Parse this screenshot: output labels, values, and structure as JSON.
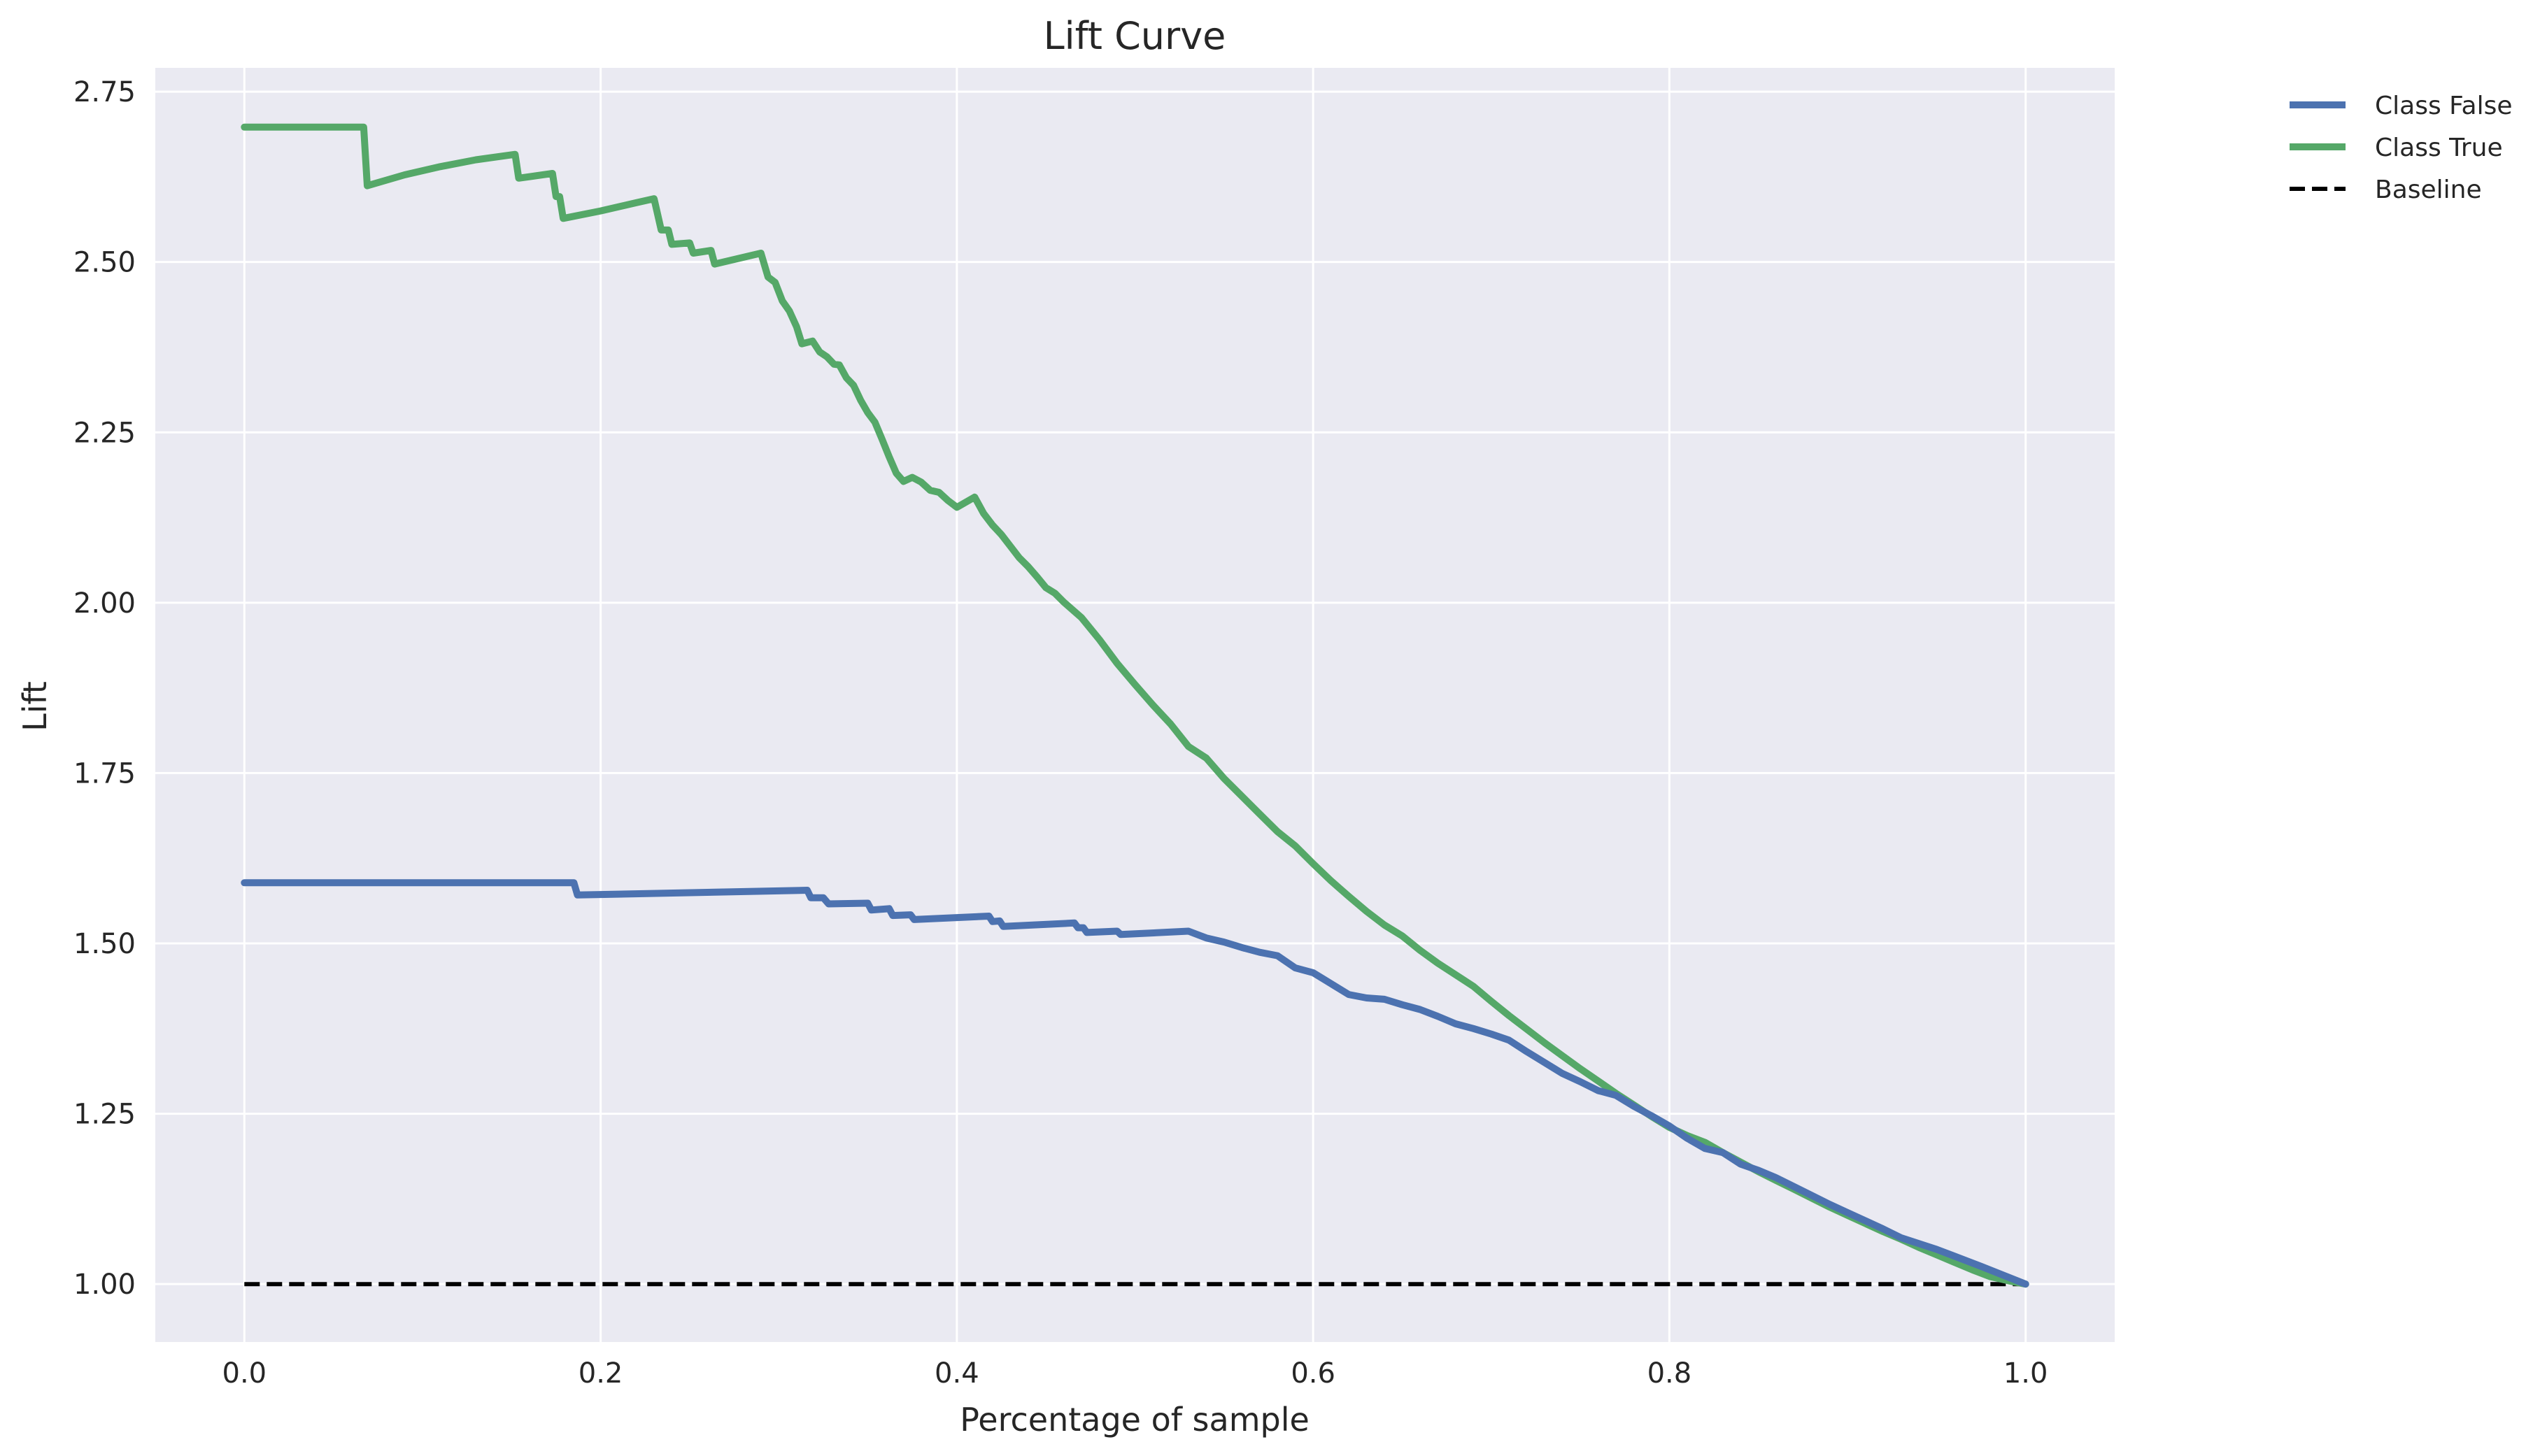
{
  "chart_data": {
    "type": "line",
    "title": "Lift Curve",
    "xlabel": "Percentage of sample",
    "ylabel": "Lift",
    "xlim": [
      -0.05,
      1.05
    ],
    "ylim": [
      0.915,
      2.785
    ],
    "grid": true,
    "legend_position": "outside top-right",
    "x_ticks": [
      {
        "value": 0.0,
        "label": "0.0"
      },
      {
        "value": 0.2,
        "label": "0.2"
      },
      {
        "value": 0.4,
        "label": "0.4"
      },
      {
        "value": 0.6,
        "label": "0.6"
      },
      {
        "value": 0.8,
        "label": "0.8"
      },
      {
        "value": 1.0,
        "label": "1.0"
      }
    ],
    "y_ticks": [
      {
        "value": 1.0,
        "label": "1.00"
      },
      {
        "value": 1.25,
        "label": "1.25"
      },
      {
        "value": 1.5,
        "label": "1.50"
      },
      {
        "value": 1.75,
        "label": "1.75"
      },
      {
        "value": 2.0,
        "label": "2.00"
      },
      {
        "value": 2.25,
        "label": "2.25"
      },
      {
        "value": 2.5,
        "label": "2.50"
      },
      {
        "value": 2.75,
        "label": "2.75"
      }
    ],
    "series": [
      {
        "name": "Class False",
        "color": "#4c72b0",
        "style": "solid",
        "points": [
          [
            0.0,
            1.589
          ],
          [
            0.185,
            1.589
          ],
          [
            0.187,
            1.571
          ],
          [
            0.316,
            1.578
          ],
          [
            0.318,
            1.567
          ],
          [
            0.325,
            1.567
          ],
          [
            0.328,
            1.558
          ],
          [
            0.35,
            1.559
          ],
          [
            0.352,
            1.549
          ],
          [
            0.362,
            1.551
          ],
          [
            0.364,
            1.541
          ],
          [
            0.374,
            1.542
          ],
          [
            0.376,
            1.535
          ],
          [
            0.418,
            1.54
          ],
          [
            0.42,
            1.532
          ],
          [
            0.424,
            1.533
          ],
          [
            0.426,
            1.525
          ],
          [
            0.466,
            1.53
          ],
          [
            0.468,
            1.523
          ],
          [
            0.471,
            1.523
          ],
          [
            0.473,
            1.516
          ],
          [
            0.49,
            1.518
          ],
          [
            0.492,
            1.513
          ],
          [
            0.53,
            1.518
          ],
          [
            0.54,
            1.508
          ],
          [
            0.55,
            1.502
          ],
          [
            0.56,
            1.494
          ],
          [
            0.57,
            1.487
          ],
          [
            0.58,
            1.482
          ],
          [
            0.59,
            1.464
          ],
          [
            0.6,
            1.457
          ],
          [
            0.61,
            1.441
          ],
          [
            0.62,
            1.425
          ],
          [
            0.63,
            1.42
          ],
          [
            0.64,
            1.418
          ],
          [
            0.65,
            1.41
          ],
          [
            0.66,
            1.403
          ],
          [
            0.67,
            1.393
          ],
          [
            0.68,
            1.382
          ],
          [
            0.69,
            1.375
          ],
          [
            0.7,
            1.367
          ],
          [
            0.71,
            1.358
          ],
          [
            0.72,
            1.341
          ],
          [
            0.73,
            1.325
          ],
          [
            0.74,
            1.309
          ],
          [
            0.75,
            1.297
          ],
          [
            0.76,
            1.284
          ],
          [
            0.77,
            1.277
          ],
          [
            0.78,
            1.261
          ],
          [
            0.79,
            1.247
          ],
          [
            0.8,
            1.232
          ],
          [
            0.81,
            1.214
          ],
          [
            0.82,
            1.199
          ],
          [
            0.83,
            1.193
          ],
          [
            0.84,
            1.176
          ],
          [
            0.85,
            1.167
          ],
          [
            0.86,
            1.156
          ],
          [
            0.87,
            1.143
          ],
          [
            0.88,
            1.13
          ],
          [
            0.89,
            1.117
          ],
          [
            0.9,
            1.105
          ],
          [
            0.91,
            1.093
          ],
          [
            0.92,
            1.081
          ],
          [
            0.93,
            1.068
          ],
          [
            0.95,
            1.051
          ],
          [
            0.975,
            1.026
          ],
          [
            1.0,
            1.0
          ]
        ]
      },
      {
        "name": "Class True",
        "color": "#55a868",
        "style": "solid",
        "points": [
          [
            0.0,
            2.698
          ],
          [
            0.067,
            2.698
          ],
          [
            0.069,
            2.612
          ],
          [
            0.09,
            2.628
          ],
          [
            0.11,
            2.64
          ],
          [
            0.13,
            2.65
          ],
          [
            0.152,
            2.658
          ],
          [
            0.154,
            2.623
          ],
          [
            0.173,
            2.63
          ],
          [
            0.175,
            2.596
          ],
          [
            0.177,
            2.596
          ],
          [
            0.179,
            2.564
          ],
          [
            0.2,
            2.575
          ],
          [
            0.22,
            2.587
          ],
          [
            0.23,
            2.593
          ],
          [
            0.234,
            2.547
          ],
          [
            0.238,
            2.547
          ],
          [
            0.24,
            2.526
          ],
          [
            0.25,
            2.528
          ],
          [
            0.252,
            2.513
          ],
          [
            0.262,
            2.517
          ],
          [
            0.264,
            2.497
          ],
          [
            0.29,
            2.513
          ],
          [
            0.294,
            2.478
          ],
          [
            0.298,
            2.47
          ],
          [
            0.302,
            2.443
          ],
          [
            0.306,
            2.428
          ],
          [
            0.31,
            2.405
          ],
          [
            0.313,
            2.38
          ],
          [
            0.319,
            2.384
          ],
          [
            0.323,
            2.368
          ],
          [
            0.327,
            2.361
          ],
          [
            0.331,
            2.35
          ],
          [
            0.334,
            2.349
          ],
          [
            0.338,
            2.33
          ],
          [
            0.342,
            2.319
          ],
          [
            0.346,
            2.297
          ],
          [
            0.35,
            2.279
          ],
          [
            0.354,
            2.265
          ],
          [
            0.358,
            2.24
          ],
          [
            0.362,
            2.214
          ],
          [
            0.366,
            2.19
          ],
          [
            0.37,
            2.178
          ],
          [
            0.375,
            2.184
          ],
          [
            0.38,
            2.177
          ],
          [
            0.385,
            2.165
          ],
          [
            0.39,
            2.162
          ],
          [
            0.395,
            2.15
          ],
          [
            0.4,
            2.14
          ],
          [
            0.41,
            2.155
          ],
          [
            0.415,
            2.131
          ],
          [
            0.42,
            2.114
          ],
          [
            0.425,
            2.1
          ],
          [
            0.43,
            2.083
          ],
          [
            0.435,
            2.066
          ],
          [
            0.44,
            2.053
          ],
          [
            0.445,
            2.038
          ],
          [
            0.45,
            2.022
          ],
          [
            0.455,
            2.014
          ],
          [
            0.46,
            2.001
          ],
          [
            0.47,
            1.978
          ],
          [
            0.48,
            1.946
          ],
          [
            0.49,
            1.911
          ],
          [
            0.5,
            1.88
          ],
          [
            0.51,
            1.85
          ],
          [
            0.52,
            1.822
          ],
          [
            0.53,
            1.789
          ],
          [
            0.54,
            1.772
          ],
          [
            0.55,
            1.742
          ],
          [
            0.56,
            1.716
          ],
          [
            0.57,
            1.69
          ],
          [
            0.58,
            1.664
          ],
          [
            0.59,
            1.643
          ],
          [
            0.6,
            1.617
          ],
          [
            0.61,
            1.592
          ],
          [
            0.62,
            1.569
          ],
          [
            0.63,
            1.547
          ],
          [
            0.64,
            1.527
          ],
          [
            0.65,
            1.511
          ],
          [
            0.66,
            1.49
          ],
          [
            0.67,
            1.471
          ],
          [
            0.68,
            1.454
          ],
          [
            0.69,
            1.437
          ],
          [
            0.7,
            1.415
          ],
          [
            0.71,
            1.394
          ],
          [
            0.72,
            1.374
          ],
          [
            0.73,
            1.354
          ],
          [
            0.74,
            1.335
          ],
          [
            0.75,
            1.316
          ],
          [
            0.76,
            1.298
          ],
          [
            0.77,
            1.28
          ],
          [
            0.78,
            1.263
          ],
          [
            0.79,
            1.246
          ],
          [
            0.8,
            1.23
          ],
          [
            0.81,
            1.218
          ],
          [
            0.82,
            1.208
          ],
          [
            0.83,
            1.193
          ],
          [
            0.84,
            1.179
          ],
          [
            0.85,
            1.165
          ],
          [
            0.86,
            1.152
          ],
          [
            0.87,
            1.139
          ],
          [
            0.88,
            1.126
          ],
          [
            0.89,
            1.113
          ],
          [
            0.9,
            1.101
          ],
          [
            0.91,
            1.089
          ],
          [
            0.92,
            1.077
          ],
          [
            0.93,
            1.066
          ],
          [
            0.94,
            1.054
          ],
          [
            0.95,
            1.043
          ],
          [
            0.96,
            1.032
          ],
          [
            0.97,
            1.021
          ],
          [
            0.98,
            1.011
          ],
          [
            0.99,
            1.005
          ],
          [
            1.0,
            1.0
          ]
        ]
      },
      {
        "name": "Baseline",
        "color": "#000000",
        "style": "dashed",
        "points": [
          [
            0.0,
            1.0
          ],
          [
            1.0,
            1.0
          ]
        ]
      }
    ]
  }
}
